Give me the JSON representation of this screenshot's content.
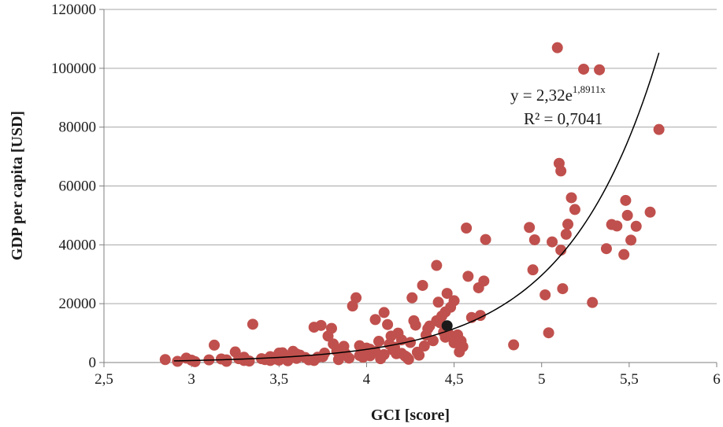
{
  "chart_data": {
    "type": "scatter",
    "xlabel": "GCI [score]",
    "ylabel": "GDP  per capita [USD]",
    "xlim": [
      2.5,
      6
    ],
    "ylim": [
      0,
      120000
    ],
    "x_ticks": [
      "2,5",
      "3",
      "3,5",
      "4",
      "4,5",
      "5",
      "5,5",
      "6"
    ],
    "y_ticks": [
      "0",
      "20000",
      "40000",
      "60000",
      "80000",
      "100000",
      "120000"
    ],
    "grid": "horizontal",
    "colors": {
      "points": "#c0504d",
      "highlight": "#1a1a1a",
      "trendline": "#000000",
      "grid": "#a6a6a6"
    },
    "trendline": {
      "type": "exponential",
      "a": 2.32,
      "b": 1.8911,
      "x_range": [
        2.9,
        5.67
      ],
      "equation_prefix": "y = 2,32e",
      "equation_exponent": "1,8911x",
      "r_squared": "R² = 0,7041"
    },
    "highlight_point": {
      "x": 4.46,
      "y": 12500
    },
    "points": [
      [
        2.85,
        1000
      ],
      [
        2.92,
        400
      ],
      [
        2.97,
        1500
      ],
      [
        3.0,
        800
      ],
      [
        3.02,
        300
      ],
      [
        3.1,
        900
      ],
      [
        3.13,
        5900
      ],
      [
        3.17,
        1200
      ],
      [
        3.2,
        900
      ],
      [
        3.25,
        3600
      ],
      [
        3.27,
        1300
      ],
      [
        3.3,
        700
      ],
      [
        3.33,
        500
      ],
      [
        3.35,
        13000
      ],
      [
        3.4,
        1300
      ],
      [
        3.42,
        1000
      ],
      [
        3.45,
        700
      ],
      [
        3.48,
        1200
      ],
      [
        3.5,
        3200
      ],
      [
        3.52,
        3300
      ],
      [
        3.55,
        1500
      ],
      [
        3.58,
        3800
      ],
      [
        3.6,
        2900
      ],
      [
        3.62,
        2500
      ],
      [
        3.65,
        1700
      ],
      [
        3.67,
        900
      ],
      [
        3.7,
        12000
      ],
      [
        3.72,
        1800
      ],
      [
        3.74,
        12600
      ],
      [
        3.76,
        3200
      ],
      [
        3.78,
        9000
      ],
      [
        3.8,
        11600
      ],
      [
        3.81,
        6300
      ],
      [
        3.83,
        3900
      ],
      [
        3.85,
        2300
      ],
      [
        3.87,
        5500
      ],
      [
        3.9,
        1500
      ],
      [
        3.92,
        19200
      ],
      [
        3.94,
        22000
      ],
      [
        3.96,
        5700
      ],
      [
        4.0,
        4900
      ],
      [
        4.02,
        2300
      ],
      [
        4.05,
        14600
      ],
      [
        4.07,
        7200
      ],
      [
        4.1,
        17000
      ],
      [
        4.12,
        12900
      ],
      [
        4.14,
        9000
      ],
      [
        4.15,
        4300
      ],
      [
        4.17,
        3000
      ],
      [
        4.18,
        10000
      ],
      [
        4.2,
        7700
      ],
      [
        4.22,
        2200
      ],
      [
        4.24,
        1100
      ],
      [
        4.26,
        22000
      ],
      [
        4.27,
        14200
      ],
      [
        4.28,
        12700
      ],
      [
        4.3,
        2500
      ],
      [
        4.32,
        26200
      ],
      [
        4.34,
        9300
      ],
      [
        4.35,
        11500
      ],
      [
        4.38,
        7400
      ],
      [
        4.4,
        33000
      ],
      [
        4.41,
        20500
      ],
      [
        4.42,
        13500
      ],
      [
        4.44,
        10300
      ],
      [
        4.45,
        8600
      ],
      [
        4.46,
        23500
      ],
      [
        4.48,
        18800
      ],
      [
        4.5,
        21000
      ],
      [
        4.52,
        9400
      ],
      [
        4.53,
        3600
      ],
      [
        4.55,
        5400
      ],
      [
        4.57,
        45700
      ],
      [
        4.58,
        29300
      ],
      [
        4.6,
        15300
      ],
      [
        4.64,
        25400
      ],
      [
        4.65,
        16000
      ],
      [
        4.67,
        27700
      ],
      [
        4.68,
        41800
      ],
      [
        4.84,
        6000
      ],
      [
        4.93,
        45900
      ],
      [
        4.95,
        31500
      ],
      [
        4.96,
        41700
      ],
      [
        5.02,
        23000
      ],
      [
        5.04,
        10100
      ],
      [
        5.06,
        41000
      ],
      [
        5.09,
        107000
      ],
      [
        5.1,
        67700
      ],
      [
        5.11,
        65100
      ],
      [
        5.12,
        25100
      ],
      [
        5.11,
        38200
      ],
      [
        5.14,
        43600
      ],
      [
        5.15,
        47000
      ],
      [
        5.17,
        56000
      ],
      [
        5.19,
        52000
      ],
      [
        5.24,
        99700
      ],
      [
        5.29,
        20400
      ],
      [
        5.33,
        99500
      ],
      [
        5.37,
        38700
      ],
      [
        5.4,
        46900
      ],
      [
        5.43,
        46400
      ],
      [
        5.47,
        36700
      ],
      [
        5.48,
        55100
      ],
      [
        5.49,
        50000
      ],
      [
        5.51,
        41600
      ],
      [
        5.54,
        46300
      ],
      [
        5.62,
        51100
      ],
      [
        5.67,
        79200
      ],
      [
        3.5,
        800
      ],
      [
        3.6,
        1400
      ],
      [
        3.75,
        2000
      ],
      [
        3.88,
        3000
      ],
      [
        3.98,
        1800
      ],
      [
        4.02,
        4500
      ],
      [
        4.08,
        1300
      ],
      [
        4.1,
        2700
      ],
      [
        4.13,
        6200
      ],
      [
        4.16,
        5200
      ],
      [
        4.2,
        3100
      ],
      [
        4.23,
        1800
      ],
      [
        4.25,
        6800
      ],
      [
        4.29,
        3500
      ],
      [
        4.33,
        5600
      ],
      [
        4.36,
        12400
      ],
      [
        4.4,
        14200
      ],
      [
        4.43,
        15800
      ],
      [
        4.45,
        17200
      ],
      [
        4.47,
        9700
      ],
      [
        4.5,
        6700
      ],
      [
        4.54,
        7300
      ],
      [
        3.2,
        400
      ],
      [
        3.3,
        1800
      ],
      [
        3.45,
        2000
      ],
      [
        3.55,
        600
      ],
      [
        3.7,
        700
      ],
      [
        3.84,
        1000
      ],
      [
        3.96,
        2400
      ],
      [
        4.05,
        3800
      ]
    ]
  }
}
